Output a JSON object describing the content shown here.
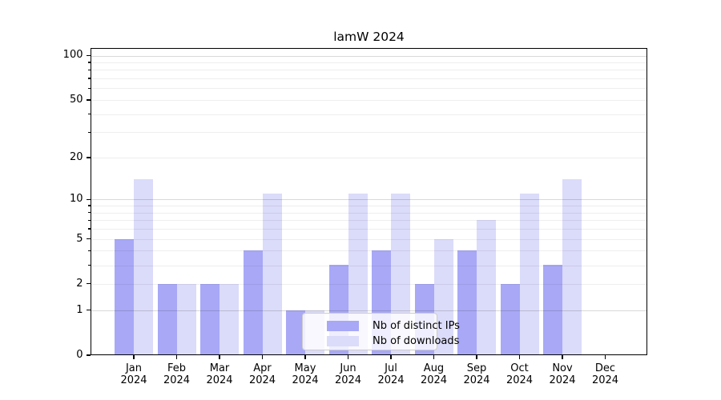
{
  "figure": {
    "background": "#ffffff"
  },
  "chart_data": {
    "type": "bar",
    "title": "lamW 2024",
    "categories": [
      "Jan",
      "Feb",
      "Mar",
      "Apr",
      "May",
      "Jun",
      "Jul",
      "Aug",
      "Sep",
      "Oct",
      "Nov",
      "Dec"
    ],
    "year_label": "2024",
    "series": [
      {
        "name": "Nb of distinct IPs",
        "color": "#a8a8f7",
        "values": [
          5,
          2,
          2,
          4,
          1,
          3,
          4,
          2,
          4,
          2,
          3,
          0
        ]
      },
      {
        "name": "Nb of downloads",
        "color": "#dbdbfa",
        "values": [
          14,
          2,
          2,
          11,
          1,
          11,
          11,
          5,
          7,
          11,
          14,
          0
        ]
      }
    ],
    "yscale": "log1p",
    "ylim": [
      0,
      112.5
    ],
    "axis_top_value": 112.5,
    "ytick_values": [
      0,
      1,
      2,
      5,
      10,
      20,
      50,
      100
    ],
    "ytick_labels": [
      "0",
      "1",
      "2",
      "5",
      "10",
      "20",
      "50",
      "100"
    ],
    "minor_tick_values": [
      2,
      3,
      4,
      5,
      6,
      7,
      8,
      9,
      20,
      30,
      40,
      50,
      60,
      70,
      80,
      90
    ],
    "major_grid_values": [
      1,
      10,
      100
    ],
    "grid": true,
    "legend_position": "lower center",
    "legend_entries": [
      "Nb of distinct IPs",
      "Nb of downloads"
    ]
  },
  "colors": {
    "bar_distinct_ips": "#a8a8f7",
    "bar_downloads": "#dbdbfa",
    "grid_major": "rgba(0,0,0,0.15)",
    "grid_minor": "rgba(0,0,0,0.065)",
    "axis": "#000000",
    "legend_border": "#cccccc",
    "legend_background": "rgba(255,255,255,0.8)"
  }
}
